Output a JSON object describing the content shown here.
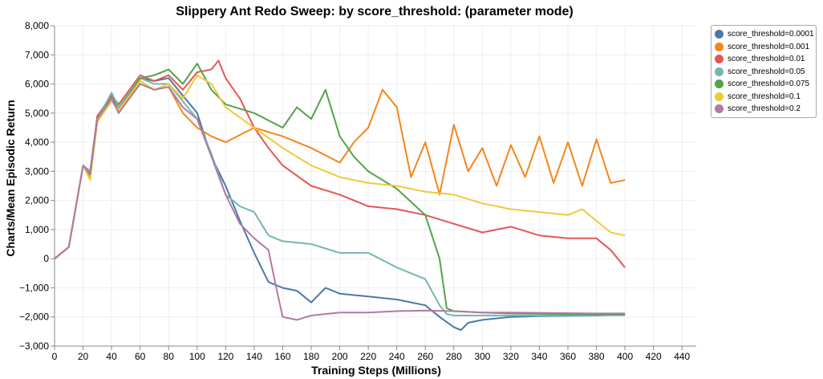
{
  "chart_data": {
    "type": "line",
    "title": "Slippery Ant Redo Sweep: by score_threshold: (parameter mode)",
    "xlabel": "Training Steps (Millions)",
    "ylabel": "Charts/Mean Episodic Return",
    "xlim": [
      0,
      450
    ],
    "ylim": [
      -3000,
      8000
    ],
    "x_ticks": [
      0,
      20,
      40,
      60,
      80,
      100,
      120,
      140,
      160,
      180,
      200,
      220,
      240,
      260,
      280,
      300,
      320,
      340,
      360,
      380,
      400,
      420,
      440
    ],
    "y_ticks": [
      -3000,
      -2000,
      -1000,
      0,
      1000,
      2000,
      3000,
      4000,
      5000,
      6000,
      7000,
      8000
    ],
    "x_tick_labels": [
      "0",
      "20",
      "40",
      "60",
      "80",
      "100",
      "120",
      "140",
      "160",
      "180",
      "200",
      "220",
      "240",
      "260",
      "280",
      "300",
      "320",
      "340",
      "360",
      "380",
      "400",
      "420",
      "440"
    ],
    "y_tick_labels": [
      "−3,000",
      "−2,000",
      "−1,000",
      "0",
      "1,000",
      "2,000",
      "3,000",
      "4,000",
      "5,000",
      "6,000",
      "7,000",
      "8,000"
    ],
    "grid": true,
    "legend_position": "right",
    "series": [
      {
        "name": "score_threshold=0.0001",
        "color": "#4c78a8",
        "x": [
          0,
          10,
          20,
          25,
          30,
          40,
          45,
          60,
          70,
          80,
          90,
          100,
          110,
          120,
          130,
          140,
          150,
          160,
          170,
          180,
          190,
          200,
          220,
          240,
          260,
          270,
          280,
          285,
          290,
          300,
          320,
          340,
          360,
          380,
          400
        ],
        "y": [
          0,
          400,
          3200,
          3000,
          4800,
          5600,
          5200,
          6200,
          6100,
          6200,
          5600,
          5000,
          3500,
          2500,
          1300,
          200,
          -800,
          -1000,
          -1100,
          -1500,
          -1000,
          -1200,
          -1300,
          -1400,
          -1600,
          -2000,
          -2350,
          -2450,
          -2200,
          -2100,
          -2000,
          -1970,
          -1960,
          -1950,
          -1930
        ]
      },
      {
        "name": "score_threshold=0.001",
        "color": "#f58518",
        "x": [
          0,
          10,
          20,
          25,
          30,
          40,
          45,
          60,
          70,
          80,
          90,
          100,
          110,
          120,
          140,
          160,
          180,
          200,
          210,
          220,
          230,
          240,
          250,
          260,
          270,
          280,
          290,
          300,
          310,
          320,
          330,
          340,
          350,
          360,
          370,
          380,
          390,
          400
        ],
        "y": [
          0,
          400,
          3200,
          2800,
          4700,
          5500,
          5000,
          6100,
          5800,
          5900,
          5000,
          4500,
          4200,
          4000,
          4500,
          4200,
          3800,
          3300,
          4000,
          4500,
          5800,
          5200,
          2800,
          4000,
          2200,
          4600,
          3000,
          3800,
          2500,
          3900,
          2800,
          4200,
          2600,
          4000,
          2500,
          4100,
          2600,
          2700
        ]
      },
      {
        "name": "score_threshold=0.01",
        "color": "#e45756",
        "x": [
          0,
          10,
          20,
          25,
          30,
          40,
          45,
          60,
          70,
          80,
          90,
          100,
          110,
          115,
          120,
          130,
          140,
          150,
          160,
          180,
          200,
          220,
          240,
          260,
          280,
          300,
          320,
          340,
          360,
          380,
          390,
          400
        ],
        "y": [
          0,
          400,
          3200,
          3000,
          4900,
          5600,
          5300,
          6300,
          6100,
          6300,
          5800,
          6400,
          6500,
          6800,
          6200,
          5500,
          4500,
          3800,
          3200,
          2500,
          2200,
          1800,
          1700,
          1500,
          1200,
          900,
          1100,
          800,
          700,
          700,
          300,
          -300
        ]
      },
      {
        "name": "score_threshold=0.05",
        "color": "#72b7b2",
        "x": [
          0,
          10,
          20,
          25,
          30,
          40,
          45,
          60,
          70,
          80,
          90,
          100,
          110,
          120,
          130,
          140,
          150,
          160,
          180,
          200,
          220,
          240,
          260,
          270,
          275,
          280,
          300,
          320,
          340,
          360,
          380,
          400
        ],
        "y": [
          0,
          400,
          3200,
          3000,
          4800,
          5700,
          5200,
          6200,
          6000,
          6000,
          5400,
          4800,
          3600,
          2200,
          1800,
          1600,
          800,
          600,
          500,
          200,
          200,
          -300,
          -700,
          -1600,
          -1900,
          -1950,
          -1950,
          -1950,
          -1950,
          -1940,
          -1940,
          -1930
        ]
      },
      {
        "name": "score_threshold=0.075",
        "color": "#54a24b",
        "x": [
          0,
          10,
          20,
          25,
          30,
          40,
          45,
          60,
          70,
          80,
          90,
          100,
          110,
          120,
          140,
          160,
          170,
          180,
          190,
          200,
          210,
          220,
          240,
          260,
          270,
          275,
          280,
          300,
          320,
          340,
          360,
          380,
          400
        ],
        "y": [
          0,
          400,
          3200,
          2900,
          4800,
          5500,
          5100,
          6200,
          6300,
          6500,
          6000,
          6700,
          5800,
          5300,
          5000,
          4500,
          5200,
          4800,
          5800,
          4200,
          3500,
          3000,
          2400,
          1500,
          0,
          -1700,
          -1800,
          -1850,
          -1880,
          -1890,
          -1900,
          -1910,
          -1920
        ]
      },
      {
        "name": "score_threshold=0.1",
        "color": "#eeca3b",
        "x": [
          0,
          10,
          20,
          25,
          30,
          40,
          45,
          60,
          70,
          80,
          90,
          100,
          110,
          120,
          140,
          160,
          180,
          200,
          220,
          240,
          260,
          280,
          300,
          320,
          340,
          360,
          370,
          380,
          390,
          400
        ],
        "y": [
          0,
          400,
          3200,
          2700,
          4700,
          5400,
          5100,
          6100,
          5800,
          6000,
          5500,
          6300,
          6000,
          5200,
          4500,
          3800,
          3200,
          2800,
          2600,
          2500,
          2300,
          2200,
          1900,
          1700,
          1600,
          1500,
          1700,
          1300,
          900,
          800
        ]
      },
      {
        "name": "score_threshold=0.2",
        "color": "#b279a2",
        "x": [
          0,
          10,
          20,
          25,
          30,
          40,
          45,
          60,
          70,
          80,
          90,
          100,
          110,
          120,
          130,
          140,
          150,
          155,
          160,
          170,
          180,
          200,
          220,
          240,
          260,
          280,
          300,
          320,
          340,
          360,
          380,
          400
        ],
        "y": [
          0,
          400,
          3200,
          2900,
          4800,
          5500,
          5000,
          6000,
          5800,
          5900,
          5200,
          4800,
          3500,
          2200,
          1200,
          700,
          300,
          -900,
          -2000,
          -2100,
          -1950,
          -1850,
          -1850,
          -1800,
          -1780,
          -1800,
          -1850,
          -1850,
          -1860,
          -1870,
          -1880,
          -1880
        ]
      }
    ]
  }
}
